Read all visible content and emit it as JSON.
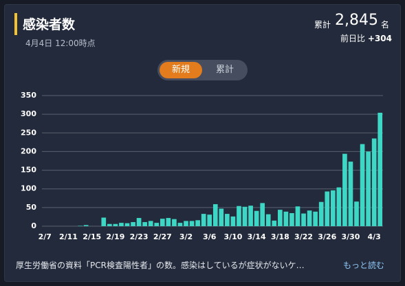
{
  "header": {
    "title": "感染者数",
    "date": "4月4日 12:00時点",
    "total_label": "累計",
    "total": "2,845",
    "unit": "名",
    "diff_label": "前日比",
    "diff": "+304"
  },
  "toggle": {
    "options": [
      "新規",
      "累計"
    ]
  },
  "footer": {
    "text": "厚生労働省の資料「PCR検査陽性者」の数。感染はしているが症状がないケ…",
    "link": "もっと読む"
  },
  "chart_data": {
    "type": "bar",
    "color": "#3ed6c4",
    "grid": true,
    "ylim": [
      0,
      350
    ],
    "yticks": [
      0,
      50,
      100,
      150,
      200,
      250,
      300,
      350
    ],
    "categories": [
      "2/7",
      null,
      null,
      null,
      "2/11",
      null,
      null,
      null,
      "2/15",
      null,
      null,
      null,
      "2/19",
      null,
      null,
      null,
      "2/23",
      null,
      null,
      null,
      "2/27",
      null,
      null,
      null,
      "3/2",
      null,
      null,
      null,
      "3/6",
      null,
      null,
      null,
      "3/10",
      null,
      null,
      null,
      "3/14",
      null,
      null,
      null,
      "3/18",
      null,
      null,
      null,
      "3/22",
      null,
      null,
      null,
      "3/26",
      null,
      null,
      null,
      "3/30",
      null,
      null,
      null,
      "4/3",
      null
    ],
    "values": [
      0,
      0,
      0,
      0,
      0,
      0,
      1,
      3,
      0,
      0,
      23,
      6,
      6,
      9,
      8,
      11,
      22,
      11,
      14,
      9,
      20,
      22,
      19,
      9,
      14,
      14,
      16,
      33,
      31,
      59,
      47,
      33,
      26,
      54,
      52,
      55,
      41,
      62,
      32,
      15,
      44,
      39,
      35,
      53,
      34,
      42,
      39,
      65,
      93,
      96,
      104,
      194,
      173,
      66,
      220,
      200,
      235,
      304
    ]
  }
}
